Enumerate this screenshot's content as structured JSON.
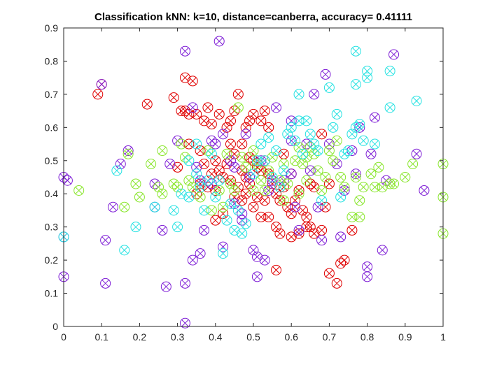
{
  "chart_data": {
    "type": "scatter",
    "title": "Classification kNN: k=10, distance=canberra, accuracy= 0.41111",
    "xlabel": "",
    "ylabel": "",
    "xlim": [
      0,
      1
    ],
    "ylim": [
      0,
      0.9
    ],
    "x_ticks": [
      "0",
      "0.1",
      "0.2",
      "0.3",
      "0.4",
      "0.5",
      "0.6",
      "0.7",
      "0.8",
      "0.9",
      "1"
    ],
    "y_ticks": [
      "0",
      "0.1",
      "0.2",
      "0.3",
      "0.4",
      "0.5",
      "0.6",
      "0.7",
      "0.8",
      "0.9"
    ],
    "grid": false,
    "marker": "circle with x",
    "series": [
      {
        "color": "#e00000",
        "points": [
          [
            0.1,
            0.73
          ],
          [
            0.09,
            0.7
          ],
          [
            0.22,
            0.67
          ],
          [
            0.29,
            0.69
          ],
          [
            0.32,
            0.75
          ],
          [
            0.34,
            0.74
          ],
          [
            0.31,
            0.65
          ],
          [
            0.32,
            0.65
          ],
          [
            0.33,
            0.64
          ],
          [
            0.35,
            0.64
          ],
          [
            0.37,
            0.62
          ],
          [
            0.38,
            0.66
          ],
          [
            0.39,
            0.61
          ],
          [
            0.41,
            0.64
          ],
          [
            0.43,
            0.6
          ],
          [
            0.44,
            0.62
          ],
          [
            0.45,
            0.65
          ],
          [
            0.46,
            0.7
          ],
          [
            0.48,
            0.6
          ],
          [
            0.49,
            0.62
          ],
          [
            0.5,
            0.64
          ],
          [
            0.52,
            0.62
          ],
          [
            0.53,
            0.65
          ],
          [
            0.54,
            0.6
          ],
          [
            0.44,
            0.55
          ],
          [
            0.45,
            0.52
          ],
          [
            0.47,
            0.55
          ],
          [
            0.49,
            0.51
          ],
          [
            0.5,
            0.5
          ],
          [
            0.51,
            0.48
          ],
          [
            0.52,
            0.47
          ],
          [
            0.53,
            0.5
          ],
          [
            0.54,
            0.46
          ],
          [
            0.4,
            0.5
          ],
          [
            0.41,
            0.47
          ],
          [
            0.42,
            0.45
          ],
          [
            0.43,
            0.49
          ],
          [
            0.39,
            0.46
          ],
          [
            0.38,
            0.42
          ],
          [
            0.4,
            0.41
          ],
          [
            0.55,
            0.43
          ],
          [
            0.56,
            0.4
          ],
          [
            0.57,
            0.38
          ],
          [
            0.58,
            0.42
          ],
          [
            0.59,
            0.36
          ],
          [
            0.6,
            0.34
          ],
          [
            0.61,
            0.38
          ],
          [
            0.62,
            0.41
          ],
          [
            0.63,
            0.35
          ],
          [
            0.64,
            0.33
          ],
          [
            0.65,
            0.3
          ],
          [
            0.66,
            0.28
          ],
          [
            0.56,
            0.3
          ],
          [
            0.57,
            0.28
          ],
          [
            0.54,
            0.33
          ],
          [
            0.52,
            0.33
          ],
          [
            0.53,
            0.38
          ],
          [
            0.5,
            0.36
          ],
          [
            0.51,
            0.39
          ],
          [
            0.48,
            0.4
          ],
          [
            0.6,
            0.27
          ],
          [
            0.62,
            0.28
          ],
          [
            0.64,
            0.3
          ],
          [
            0.68,
            0.29
          ],
          [
            0.69,
            0.36
          ],
          [
            0.7,
            0.43
          ],
          [
            0.68,
            0.58
          ],
          [
            0.7,
            0.16
          ],
          [
            0.72,
            0.13
          ],
          [
            0.73,
            0.19
          ],
          [
            0.74,
            0.2
          ],
          [
            0.76,
            0.29
          ],
          [
            0.56,
            0.17
          ],
          [
            0.42,
            0.34
          ],
          [
            0.4,
            0.32
          ],
          [
            0.3,
            0.48
          ],
          [
            0.33,
            0.55
          ],
          [
            0.36,
            0.53
          ],
          [
            0.37,
            0.49
          ],
          [
            0.44,
            0.44
          ],
          [
            0.46,
            0.42
          ],
          [
            0.47,
            0.47
          ],
          [
            0.58,
            0.52
          ],
          [
            0.6,
            0.46
          ],
          [
            0.65,
            0.43
          ],
          [
            0.66,
            0.42
          ],
          [
            0.48,
            0.45
          ],
          [
            0.49,
            0.43
          ],
          [
            0.36,
            0.43
          ],
          [
            0.35,
            0.4
          ],
          [
            0.45,
            0.39
          ],
          [
            0.47,
            0.38
          ]
        ]
      },
      {
        "color": "#7f1fd6",
        "points": [
          [
            0.0,
            0.45
          ],
          [
            0.01,
            0.44
          ],
          [
            0.0,
            0.27
          ],
          [
            0.0,
            0.15
          ],
          [
            0.1,
            0.73
          ],
          [
            0.13,
            0.36
          ],
          [
            0.15,
            0.49
          ],
          [
            0.11,
            0.26
          ],
          [
            0.11,
            0.13
          ],
          [
            0.17,
            0.53
          ],
          [
            0.24,
            0.36
          ],
          [
            0.24,
            0.43
          ],
          [
            0.26,
            0.29
          ],
          [
            0.27,
            0.12
          ],
          [
            0.28,
            0.49
          ],
          [
            0.3,
            0.56
          ],
          [
            0.32,
            0.83
          ],
          [
            0.32,
            0.13
          ],
          [
            0.32,
            0.01
          ],
          [
            0.34,
            0.2
          ],
          [
            0.34,
            0.66
          ],
          [
            0.35,
            0.48
          ],
          [
            0.36,
            0.44
          ],
          [
            0.36,
            0.22
          ],
          [
            0.37,
            0.29
          ],
          [
            0.39,
            0.56
          ],
          [
            0.39,
            0.43
          ],
          [
            0.4,
            0.55
          ],
          [
            0.41,
            0.86
          ],
          [
            0.42,
            0.24
          ],
          [
            0.42,
            0.58
          ],
          [
            0.44,
            0.5
          ],
          [
            0.45,
            0.48
          ],
          [
            0.45,
            0.37
          ],
          [
            0.47,
            0.34
          ],
          [
            0.47,
            0.32
          ],
          [
            0.48,
            0.58
          ],
          [
            0.49,
            0.45
          ],
          [
            0.5,
            0.23
          ],
          [
            0.51,
            0.21
          ],
          [
            0.51,
            0.15
          ],
          [
            0.52,
            0.5
          ],
          [
            0.53,
            0.2
          ],
          [
            0.54,
            0.41
          ],
          [
            0.55,
            0.44
          ],
          [
            0.56,
            0.66
          ],
          [
            0.58,
            0.44
          ],
          [
            0.6,
            0.62
          ],
          [
            0.6,
            0.56
          ],
          [
            0.6,
            0.46
          ],
          [
            0.61,
            0.36
          ],
          [
            0.62,
            0.29
          ],
          [
            0.64,
            0.55
          ],
          [
            0.65,
            0.47
          ],
          [
            0.66,
            0.7
          ],
          [
            0.67,
            0.36
          ],
          [
            0.68,
            0.26
          ],
          [
            0.69,
            0.76
          ],
          [
            0.7,
            0.55
          ],
          [
            0.72,
            0.49
          ],
          [
            0.73,
            0.27
          ],
          [
            0.74,
            0.41
          ],
          [
            0.76,
            0.53
          ],
          [
            0.77,
            0.46
          ],
          [
            0.78,
            0.6
          ],
          [
            0.8,
            0.18
          ],
          [
            0.8,
            0.15
          ],
          [
            0.81,
            0.52
          ],
          [
            0.82,
            0.63
          ],
          [
            0.84,
            0.23
          ],
          [
            0.85,
            0.44
          ],
          [
            0.87,
            0.82
          ],
          [
            0.93,
            0.52
          ],
          [
            0.95,
            0.41
          ]
        ]
      },
      {
        "color": "#8ae62e",
        "points": [
          [
            0.04,
            0.41
          ],
          [
            0.16,
            0.36
          ],
          [
            0.17,
            0.52
          ],
          [
            0.19,
            0.43
          ],
          [
            0.2,
            0.39
          ],
          [
            0.23,
            0.49
          ],
          [
            0.25,
            0.42
          ],
          [
            0.26,
            0.53
          ],
          [
            0.26,
            0.4
          ],
          [
            0.29,
            0.43
          ],
          [
            0.3,
            0.42
          ],
          [
            0.31,
            0.55
          ],
          [
            0.32,
            0.51
          ],
          [
            0.33,
            0.44
          ],
          [
            0.34,
            0.42
          ],
          [
            0.36,
            0.39
          ],
          [
            0.38,
            0.53
          ],
          [
            0.39,
            0.35
          ],
          [
            0.41,
            0.41
          ],
          [
            0.42,
            0.36
          ],
          [
            0.43,
            0.52
          ],
          [
            0.44,
            0.43
          ],
          [
            0.45,
            0.41
          ],
          [
            0.46,
            0.66
          ],
          [
            0.47,
            0.51
          ],
          [
            0.48,
            0.48
          ],
          [
            0.5,
            0.41
          ],
          [
            0.5,
            0.53
          ],
          [
            0.51,
            0.49
          ],
          [
            0.52,
            0.44
          ],
          [
            0.53,
            0.41
          ],
          [
            0.54,
            0.47
          ],
          [
            0.55,
            0.51
          ],
          [
            0.57,
            0.44
          ],
          [
            0.58,
            0.38
          ],
          [
            0.58,
            0.49
          ],
          [
            0.59,
            0.43
          ],
          [
            0.61,
            0.5
          ],
          [
            0.62,
            0.54
          ],
          [
            0.62,
            0.4
          ],
          [
            0.63,
            0.49
          ],
          [
            0.64,
            0.51
          ],
          [
            0.64,
            0.44
          ],
          [
            0.65,
            0.54
          ],
          [
            0.66,
            0.52
          ],
          [
            0.67,
            0.47
          ],
          [
            0.68,
            0.41
          ],
          [
            0.69,
            0.45
          ],
          [
            0.7,
            0.53
          ],
          [
            0.71,
            0.5
          ],
          [
            0.72,
            0.56
          ],
          [
            0.73,
            0.45
          ],
          [
            0.74,
            0.42
          ],
          [
            0.76,
            0.33
          ],
          [
            0.77,
            0.45
          ],
          [
            0.78,
            0.38
          ],
          [
            0.78,
            0.33
          ],
          [
            0.79,
            0.42
          ],
          [
            0.81,
            0.46
          ],
          [
            0.82,
            0.42
          ],
          [
            0.83,
            0.48
          ],
          [
            0.84,
            0.42
          ],
          [
            0.86,
            0.43
          ],
          [
            0.87,
            0.43
          ],
          [
            0.9,
            0.45
          ],
          [
            0.92,
            0.49
          ],
          [
            1.0,
            0.49
          ],
          [
            1.0,
            0.39
          ],
          [
            1.0,
            0.28
          ]
        ]
      },
      {
        "color": "#25e2e2",
        "points": [
          [
            0.0,
            0.27
          ],
          [
            0.14,
            0.47
          ],
          [
            0.16,
            0.23
          ],
          [
            0.19,
            0.3
          ],
          [
            0.24,
            0.36
          ],
          [
            0.29,
            0.35
          ],
          [
            0.3,
            0.3
          ],
          [
            0.31,
            0.4
          ],
          [
            0.33,
            0.39
          ],
          [
            0.33,
            0.5
          ],
          [
            0.35,
            0.55
          ],
          [
            0.35,
            0.46
          ],
          [
            0.36,
            0.42
          ],
          [
            0.37,
            0.35
          ],
          [
            0.38,
            0.44
          ],
          [
            0.39,
            0.52
          ],
          [
            0.4,
            0.39
          ],
          [
            0.41,
            0.44
          ],
          [
            0.42,
            0.22
          ],
          [
            0.43,
            0.32
          ],
          [
            0.44,
            0.37
          ],
          [
            0.45,
            0.29
          ],
          [
            0.46,
            0.35
          ],
          [
            0.47,
            0.28
          ],
          [
            0.48,
            0.31
          ],
          [
            0.5,
            0.46
          ],
          [
            0.51,
            0.5
          ],
          [
            0.52,
            0.55
          ],
          [
            0.53,
            0.5
          ],
          [
            0.54,
            0.57
          ],
          [
            0.55,
            0.45
          ],
          [
            0.56,
            0.53
          ],
          [
            0.57,
            0.42
          ],
          [
            0.58,
            0.47
          ],
          [
            0.59,
            0.58
          ],
          [
            0.6,
            0.6
          ],
          [
            0.61,
            0.56
          ],
          [
            0.62,
            0.62
          ],
          [
            0.62,
            0.7
          ],
          [
            0.63,
            0.52
          ],
          [
            0.64,
            0.62
          ],
          [
            0.65,
            0.58
          ],
          [
            0.66,
            0.55
          ],
          [
            0.67,
            0.53
          ],
          [
            0.68,
            0.38
          ],
          [
            0.7,
            0.72
          ],
          [
            0.71,
            0.6
          ],
          [
            0.72,
            0.64
          ],
          [
            0.73,
            0.39
          ],
          [
            0.74,
            0.52
          ],
          [
            0.75,
            0.53
          ],
          [
            0.76,
            0.58
          ],
          [
            0.77,
            0.6
          ],
          [
            0.77,
            0.73
          ],
          [
            0.77,
            0.83
          ],
          [
            0.78,
            0.61
          ],
          [
            0.79,
            0.56
          ],
          [
            0.8,
            0.75
          ],
          [
            0.8,
            0.77
          ],
          [
            0.82,
            0.55
          ],
          [
            0.86,
            0.77
          ],
          [
            0.86,
            0.66
          ],
          [
            0.93,
            0.68
          ]
        ]
      }
    ]
  }
}
